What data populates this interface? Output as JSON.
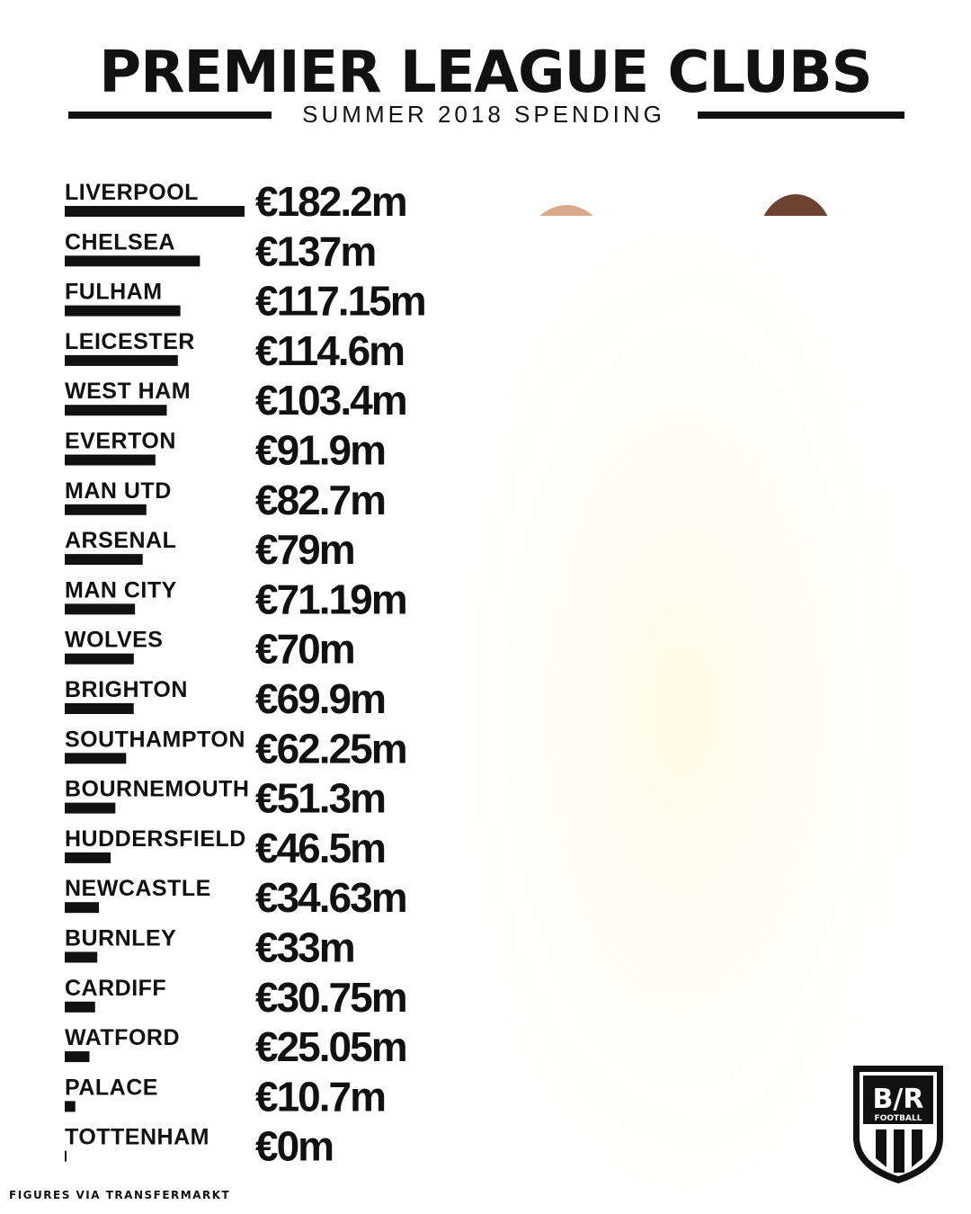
{
  "header": {
    "title": "PREMIER LEAGUE CLUBS",
    "subtitle": "SUMMER 2018 SPENDING"
  },
  "footer": {
    "source": "FIGURES VIA TRANSFERMARKT"
  },
  "brand": {
    "logo_text": "B/R",
    "logo_sub": "FOOTBALL",
    "icon": "br-football-shield-logo"
  },
  "colors": {
    "text": "#111111",
    "bar": "#111111",
    "background": "#ffffff"
  },
  "chart_data": {
    "type": "bar",
    "orientation": "horizontal",
    "title": "PREMIER LEAGUE CLUBS",
    "subtitle": "SUMMER 2018 SPENDING",
    "unit": "€ million",
    "categories": [
      "LIVERPOOL",
      "CHELSEA",
      "FULHAM",
      "LEICESTER",
      "WEST HAM",
      "EVERTON",
      "MAN UTD",
      "ARSENAL",
      "MAN CITY",
      "WOLVES",
      "BRIGHTON",
      "SOUTHAMPTON",
      "BOURNEMOUTH",
      "HUDDERSFIELD",
      "NEWCASTLE",
      "BURNLEY",
      "CARDIFF",
      "WATFORD",
      "PALACE",
      "TOTTENHAM"
    ],
    "values": [
      182.2,
      137,
      117.15,
      114.6,
      103.4,
      91.9,
      82.7,
      79,
      71.19,
      70,
      69.9,
      62.25,
      51.3,
      46.5,
      34.63,
      33,
      30.75,
      25.05,
      10.7,
      0
    ],
    "value_labels": [
      "€182.2m",
      "€137m",
      "€117.15m",
      "€114.6m",
      "€103.4m",
      "€91.9m",
      "€82.7m",
      "€79m",
      "€71.19m",
      "€70m",
      "€69.9m",
      "€62.25m",
      "€51.3m",
      "€46.5m",
      "€34.63m",
      "€33m",
      "€30.75m",
      "€25.05m",
      "€10.7m",
      "€0m"
    ],
    "legend": "none",
    "grid": false
  }
}
